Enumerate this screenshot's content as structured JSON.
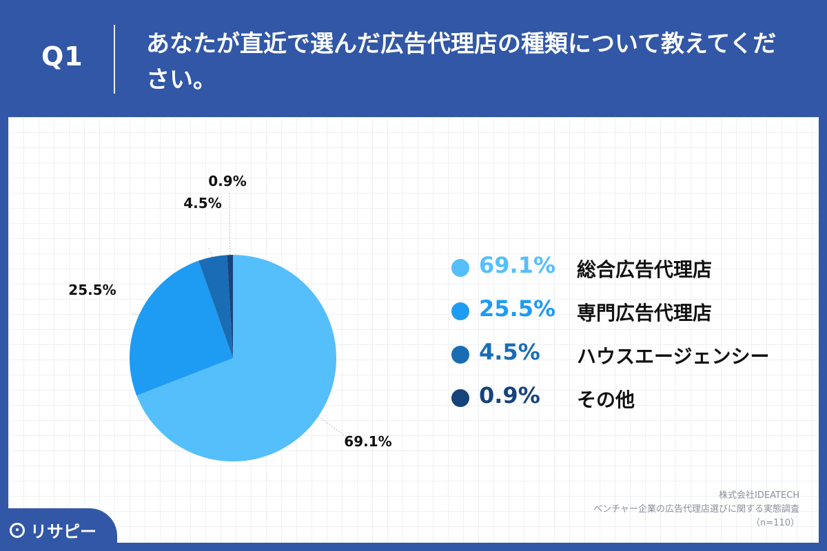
{
  "header": {
    "question_label": "Q1",
    "question_text": "あなたが直近で選んだ広告代理店の種類について教えてください。"
  },
  "chart_data": {
    "type": "pie",
    "categories": [
      "総合広告代理店",
      "専門広告代理店",
      "ハウスエージェンシー",
      "その他"
    ],
    "values": [
      69.1,
      25.5,
      4.5,
      0.9
    ],
    "labels": [
      "69.1%",
      "25.5%",
      "4.5%",
      "0.9%"
    ],
    "colors": [
      "#55bffc",
      "#1e9bf3",
      "#1a6db4",
      "#16437c"
    ],
    "legend_placement": "right",
    "start": "12 o'clock, clockwise"
  },
  "legend": [
    {
      "pct": "69.1%",
      "name": "総合広告代理店",
      "color": "#55bffc"
    },
    {
      "pct": "25.5%",
      "name": "専門広告代理店",
      "color": "#1e9bf3"
    },
    {
      "pct": "4.5%",
      "name": "ハウスエージェンシー",
      "color": "#1a6db4"
    },
    {
      "pct": "0.9%",
      "name": "その他",
      "color": "#16437c"
    }
  ],
  "source": {
    "company": "株式会社IDEATECH",
    "survey": "ベンチャー企業の広告代理店選びに関する実態調査",
    "sample": "（n=110）"
  },
  "brand": {
    "logo_text": "リサピー"
  }
}
